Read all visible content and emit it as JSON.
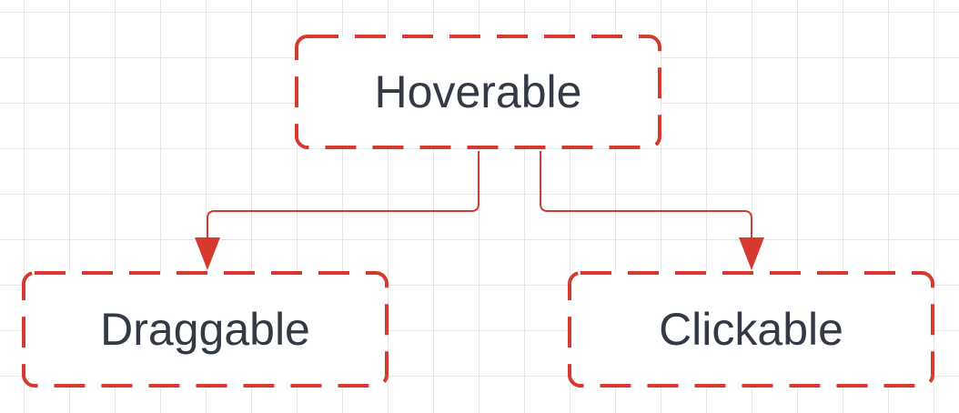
{
  "diagram": {
    "nodes": {
      "hoverable": {
        "label": "Hoverable"
      },
      "draggable": {
        "label": "Draggable"
      },
      "clickable": {
        "label": "Clickable"
      }
    },
    "edges": [
      {
        "from": "Hoverable",
        "to": "Draggable"
      },
      {
        "from": "Hoverable",
        "to": "Clickable"
      }
    ]
  },
  "colors": {
    "node_border": "#d63a2f",
    "edge": "#d63a2f",
    "text": "#333a45",
    "grid": "#e6e6e6",
    "background": "#ffffff"
  }
}
